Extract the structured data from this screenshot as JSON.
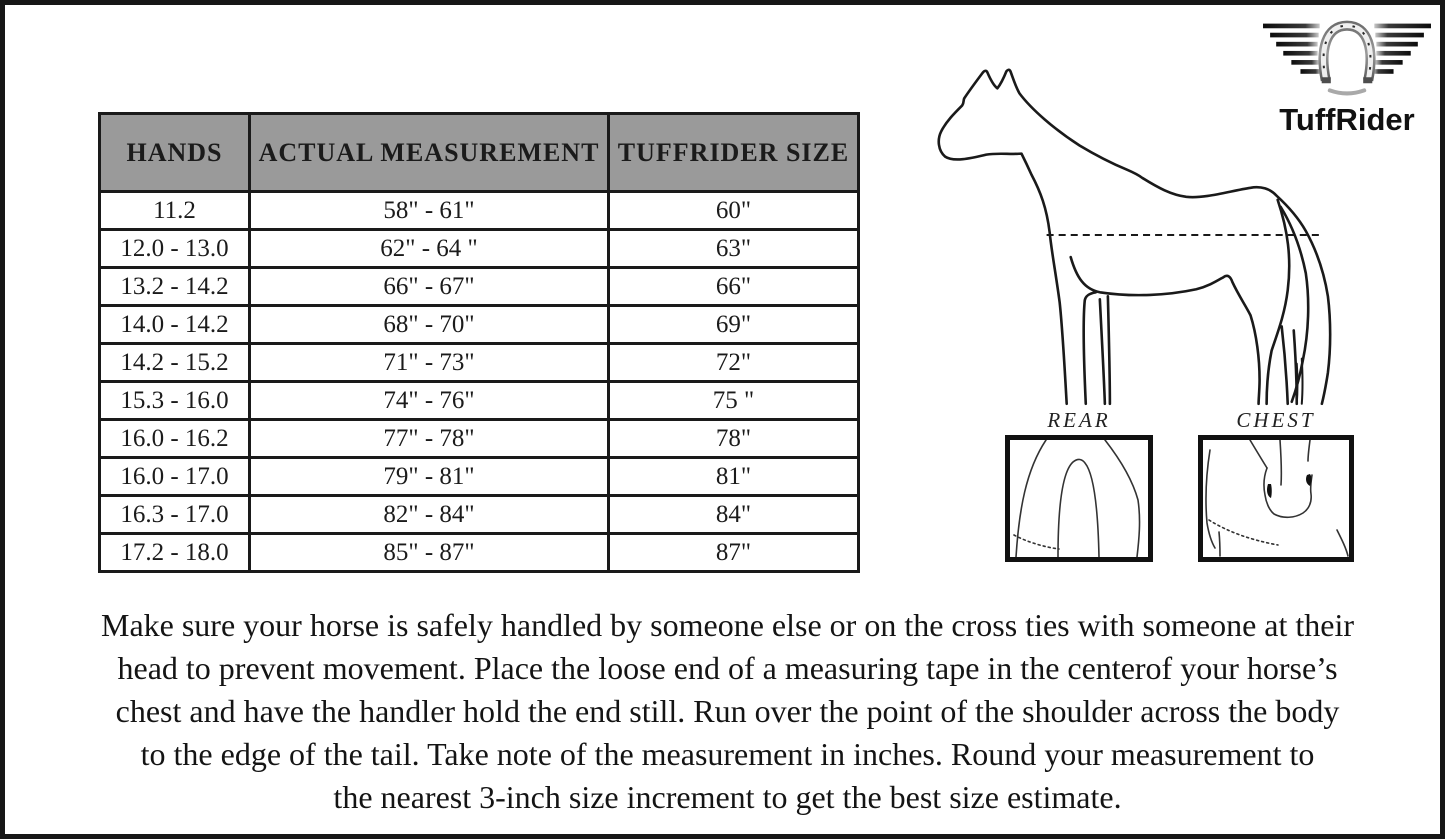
{
  "brand": {
    "name": "TuffRider"
  },
  "size_chart": {
    "columns": [
      "HANDS",
      "ACTUAL MEASUREMENT",
      "TUFFRIDER SIZE"
    ],
    "rows": [
      [
        "11.2",
        "58\" - 61\"",
        "60\""
      ],
      [
        "12.0 - 13.0",
        "62\" - 64 \"",
        "63\""
      ],
      [
        "13.2 - 14.2",
        "66\" - 67\"",
        "66\""
      ],
      [
        "14.0 - 14.2",
        "68\" - 70\"",
        "69\""
      ],
      [
        "14.2 - 15.2",
        "71\" - 73\"",
        "72\""
      ],
      [
        "15.3 - 16.0",
        "74\" - 76\"",
        "75 \""
      ],
      [
        "16.0 - 16.2",
        "77\" - 78\"",
        "78\""
      ],
      [
        "16.0 - 17.0",
        "79\" - 81\"",
        "81\""
      ],
      [
        "16.3 - 17.0",
        "82\" - 84\"",
        "84\""
      ],
      [
        "17.2 - 18.0",
        "85\" - 87\"",
        "87\""
      ]
    ]
  },
  "diagram": {
    "rear_label": "REAR",
    "chest_label": "CHEST"
  },
  "instructions": {
    "lines": [
      "Make sure your horse is safely handled by someone else or on the cross ties with someone at their",
      "head to prevent movement. Place the loose end of a measuring tape in the centerof your horse’s",
      "chest and have the handler hold the end still. Run over the point of the shoulder across the body",
      "to the edge of the tail. Take note of the measurement in inches. Round your measurement to",
      "the nearest 3-inch size increment to get the best size estimate."
    ]
  },
  "icons": {
    "logo_wings": "winged-stripes",
    "logo_horseshoe": "horseshoe",
    "horse_outline": "horse-side-view-line-drawing",
    "measure_line": "dashed-measurement-line"
  },
  "colors": {
    "header_bg": "#9a9a9a",
    "line_art": "#1a1a1a",
    "page_border": "#161616",
    "text": "#161616"
  }
}
